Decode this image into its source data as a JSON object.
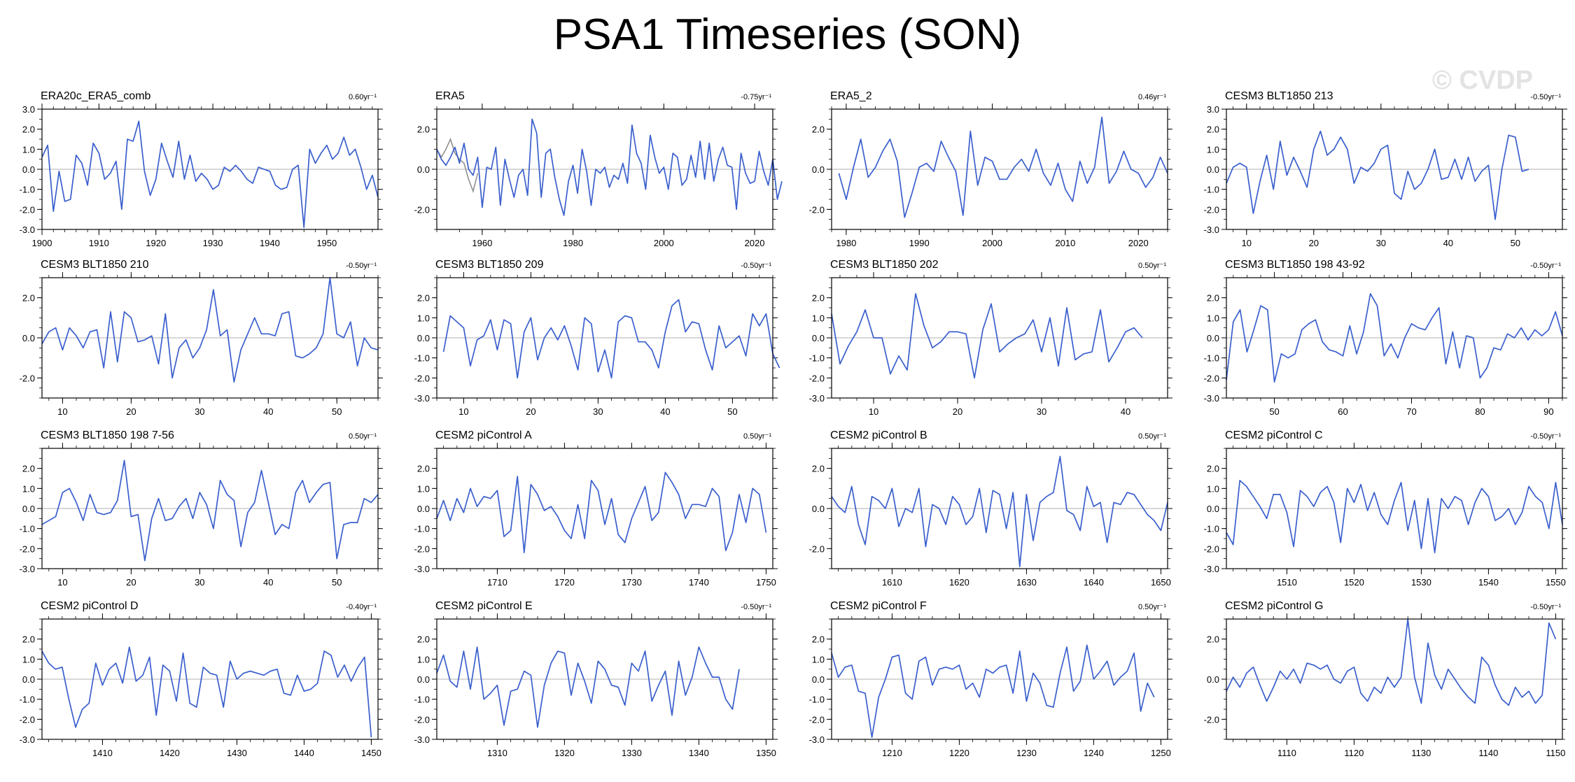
{
  "title": "PSA1 Timeseries (SON)",
  "watermark": "© CVDP",
  "colors": {
    "series": "#3a5fcd",
    "obs_extra": "#909090",
    "zero": "#b0b0b0",
    "frame": "#000000"
  },
  "chart_data": [
    {
      "type": "line",
      "title": "ERA20c_ERA5_comb",
      "trend": "0.60yr⁻¹",
      "xlim": [
        1900,
        1959
      ],
      "ylim": [
        -3.0,
        3.0
      ],
      "xticks": [
        1900,
        1910,
        1920,
        1930,
        1940,
        1950
      ],
      "yticks": [
        "3.0",
        "2.0",
        "1.0",
        "0.0",
        "-1.0",
        "-2.0",
        "-3.0"
      ],
      "x_start": 1900,
      "values": [
        0.6,
        1.2,
        -2.1,
        -0.1,
        -1.6,
        -1.5,
        0.7,
        0.3,
        -0.8,
        1.3,
        0.8,
        -0.5,
        -0.2,
        0.4,
        -2.0,
        1.5,
        1.4,
        2.4,
        -0.1,
        -1.3,
        -0.5,
        1.3,
        0.4,
        -0.4,
        1.4,
        -0.5,
        0.7,
        -0.6,
        -0.2,
        -0.5,
        -1.0,
        -0.8,
        0.1,
        -0.1,
        0.2,
        -0.1,
        -0.5,
        -0.7,
        0.1,
        0.0,
        -0.1,
        -0.8,
        -1.0,
        -0.9,
        0.0,
        0.2,
        -2.9,
        1.0,
        0.3,
        0.8,
        1.2,
        0.5,
        0.8,
        1.6,
        0.7,
        1.0,
        0.1,
        -1.0,
        -0.3,
        -1.4
      ]
    },
    {
      "type": "line",
      "title": "ERA5",
      "trend": "-0.75yr⁻¹",
      "xlim": [
        1950,
        2024
      ],
      "ylim": [
        -3.0,
        3.0
      ],
      "xticks": [
        1960,
        1980,
        2000,
        2020
      ],
      "yticks": [
        "2.0",
        "0.0",
        "-2.0"
      ],
      "x_start": 1950,
      "values": [
        1.0,
        0.5,
        0.2,
        0.6,
        1.1,
        0.3,
        1.3,
        0.0,
        -0.3,
        0.6,
        -1.9,
        0.1,
        0.0,
        1.1,
        -1.8,
        0.5,
        -0.5,
        -1.4,
        -0.3,
        0.0,
        -1.3,
        2.5,
        1.8,
        -1.4,
        0.8,
        1.0,
        -0.4,
        -1.5,
        -2.3,
        -0.6,
        0.2,
        -1.2,
        1.0,
        -0.1,
        -1.8,
        0.0,
        -0.2,
        0.1,
        -0.9,
        -0.3,
        -0.5,
        0.3,
        -0.7,
        2.2,
        0.8,
        0.3,
        -1.0,
        1.7,
        0.6,
        -0.2,
        0.1,
        -1.0,
        0.8,
        0.6,
        -0.8,
        -0.5,
        0.7,
        -0.4,
        1.4,
        -0.5,
        1.3,
        -0.6,
        0.5,
        1.1,
        0.2,
        0.1,
        -2.0,
        0.8,
        -0.2,
        -0.7,
        -0.6,
        0.9,
        -0.1,
        -0.8,
        0.5,
        -1.5,
        -0.6
      ],
      "extra_series": {
        "name": "obs-extra",
        "x_start": 1950,
        "values": [
          1.0,
          0.6,
          1.0,
          1.5,
          0.8,
          0.5,
          0.3,
          -0.5,
          -1.1,
          -0.2
        ]
      }
    },
    {
      "type": "line",
      "title": "ERA5_2",
      "trend": "0.46yr⁻¹",
      "xlim": [
        1978,
        2024
      ],
      "ylim": [
        -3.0,
        3.0
      ],
      "xticks": [
        1980,
        1990,
        2000,
        2010,
        2020
      ],
      "yticks": [
        "2.0",
        "0.0",
        "-2.0"
      ],
      "x_start": 1979,
      "values": [
        -0.2,
        -1.5,
        0.1,
        1.5,
        -0.4,
        0.1,
        0.9,
        1.5,
        0.4,
        -2.4,
        -1.2,
        0.1,
        0.3,
        -0.1,
        1.4,
        0.6,
        -0.1,
        -2.3,
        1.9,
        -0.8,
        0.6,
        0.4,
        -0.5,
        -0.5,
        0.1,
        0.5,
        -0.1,
        1.0,
        -0.2,
        -0.8,
        0.3,
        -1.0,
        -1.6,
        0.4,
        -0.7,
        0.1,
        2.6,
        -0.7,
        -0.1,
        0.9,
        0.0,
        -0.2,
        -0.9,
        -0.4,
        0.6,
        -0.2
      ]
    },
    {
      "type": "line",
      "title": "CESM3 BLT1850 213",
      "trend": "-0.50yr⁻¹",
      "xlim": [
        7,
        57
      ],
      "ylim": [
        -3.0,
        3.0
      ],
      "xticks": [
        10,
        20,
        30,
        40,
        50
      ],
      "yticks": [
        "3.0",
        "2.0",
        "1.0",
        "0.0",
        "-1.0",
        "-2.0",
        "-3.0"
      ],
      "x_start": 7,
      "values": [
        -0.7,
        0.1,
        0.3,
        0.1,
        -2.2,
        -0.6,
        0.7,
        -1.0,
        1.4,
        -0.3,
        0.6,
        -0.1,
        -0.9,
        1.0,
        1.9,
        0.7,
        1.0,
        1.6,
        1.0,
        -0.7,
        0.1,
        -0.1,
        0.3,
        1.0,
        1.2,
        -1.2,
        -1.5,
        -0.1,
        -1.0,
        -0.7,
        0.0,
        1.0,
        -0.5,
        -0.4,
        0.5,
        -0.5,
        0.6,
        -0.6,
        -0.1,
        0.2,
        -2.5,
        0.0,
        1.7,
        1.6,
        -0.1,
        0.0
      ]
    },
    {
      "type": "line",
      "title": "CESM3 BLT1850 210",
      "trend": "-0.50yr⁻¹",
      "xlim": [
        7,
        56
      ],
      "ylim": [
        -3.0,
        3.0
      ],
      "xticks": [
        10,
        20,
        30,
        40,
        50
      ],
      "yticks": [
        "2.0",
        "0.0",
        "-2.0"
      ],
      "x_start": 7,
      "values": [
        -0.3,
        0.3,
        0.5,
        -0.6,
        0.5,
        0.1,
        -0.5,
        0.3,
        0.4,
        -1.5,
        1.3,
        -1.2,
        1.3,
        1.0,
        -0.2,
        -0.1,
        0.1,
        -1.3,
        1.2,
        -2.0,
        -0.5,
        -0.1,
        -1.0,
        -0.5,
        0.4,
        2.4,
        0.1,
        0.4,
        -2.2,
        -0.6,
        0.2,
        1.0,
        0.2,
        0.2,
        0.1,
        1.2,
        1.3,
        -0.9,
        -1.0,
        -0.8,
        -0.5,
        0.2,
        3.0,
        0.2,
        0.0,
        0.8,
        -1.4,
        0.0,
        -0.5,
        -0.6
      ]
    },
    {
      "type": "line",
      "title": "CESM3 BLT1850 209",
      "trend": "-0.50yr⁻¹",
      "xlim": [
        6,
        56
      ],
      "ylim": [
        -3.0,
        3.0
      ],
      "xticks": [
        10,
        20,
        30,
        40,
        50
      ],
      "yticks": [
        "2.0",
        "1.0",
        "0.0",
        "-1.0",
        "-2.0",
        "-3.0"
      ],
      "x_start": 7,
      "values": [
        -0.7,
        1.1,
        0.8,
        0.5,
        -1.4,
        -0.1,
        0.1,
        0.9,
        -0.6,
        0.9,
        0.7,
        -2.0,
        0.3,
        1.0,
        -1.1,
        0.0,
        0.5,
        -0.1,
        0.6,
        -0.4,
        -1.6,
        1.0,
        0.7,
        -1.7,
        -0.6,
        -2.0,
        0.8,
        1.1,
        1.0,
        -0.2,
        -0.2,
        -0.6,
        -1.5,
        0.3,
        1.6,
        1.9,
        0.3,
        0.8,
        0.7,
        -0.6,
        -1.6,
        0.6,
        -0.5,
        -0.2,
        0.1,
        -0.9,
        1.2,
        0.6,
        1.2,
        -0.8,
        -1.5
      ]
    },
    {
      "type": "line",
      "title": "CESM3 BLT1850 202",
      "trend": "0.50yr⁻¹",
      "xlim": [
        5,
        45
      ],
      "ylim": [
        -3.0,
        3.0
      ],
      "xticks": [
        10,
        20,
        30,
        40
      ],
      "yticks": [
        "2.0",
        "1.0",
        "0.0",
        "-1.0",
        "-2.0",
        "-3.0"
      ],
      "x_start": 5,
      "values": [
        1.2,
        -1.3,
        -0.4,
        0.3,
        1.4,
        0.0,
        0.0,
        -1.8,
        -0.9,
        -1.6,
        2.2,
        0.6,
        -0.5,
        -0.2,
        0.3,
        0.3,
        0.2,
        -2.0,
        0.4,
        1.7,
        -0.7,
        -0.3,
        0.0,
        0.2,
        0.9,
        -0.7,
        1.0,
        -1.4,
        1.5,
        -1.1,
        -0.8,
        -0.7,
        1.4,
        -1.2,
        -0.5,
        0.3,
        0.5,
        0.0
      ]
    },
    {
      "type": "line",
      "title": "CESM3 BLT1850 198 43-92",
      "trend": "-0.50yr⁻¹",
      "xlim": [
        43,
        92
      ],
      "ylim": [
        -3.0,
        3.0
      ],
      "xticks": [
        50,
        60,
        70,
        80,
        90
      ],
      "yticks": [
        "2.0",
        "1.0",
        "0.0",
        "-1.0",
        "-2.0",
        "-3.0"
      ],
      "x_start": 43,
      "values": [
        -2.1,
        0.8,
        1.4,
        -0.7,
        0.4,
        1.6,
        1.4,
        -2.2,
        -0.8,
        -1.0,
        -0.8,
        0.4,
        0.7,
        0.9,
        -0.2,
        -0.6,
        -0.7,
        -0.9,
        0.6,
        -0.8,
        0.3,
        2.2,
        1.6,
        -0.9,
        -0.3,
        -1.0,
        0.0,
        0.7,
        0.5,
        0.4,
        1.0,
        1.5,
        -1.3,
        0.3,
        -1.5,
        0.1,
        0.0,
        -2.0,
        -1.5,
        -0.5,
        -0.6,
        0.2,
        0.0,
        0.5,
        -0.1,
        0.4,
        0.1,
        0.4,
        1.3,
        0.1
      ]
    },
    {
      "type": "line",
      "title": "CESM3 BLT1850 198 7-56",
      "trend": "0.50yr⁻¹",
      "xlim": [
        7,
        56
      ],
      "ylim": [
        -3.0,
        3.0
      ],
      "xticks": [
        10,
        20,
        30,
        40,
        50
      ],
      "yticks": [
        "2.0",
        "1.0",
        "0.0",
        "-1.0",
        "-2.0",
        "-3.0"
      ],
      "x_start": 7,
      "values": [
        -0.8,
        -0.6,
        -0.4,
        0.8,
        1.0,
        0.3,
        -0.6,
        0.7,
        -0.2,
        -0.3,
        -0.2,
        0.4,
        2.4,
        -0.4,
        -0.3,
        -2.6,
        -0.5,
        0.5,
        -0.6,
        -0.5,
        0.1,
        0.5,
        -0.5,
        0.8,
        0.2,
        -1.0,
        1.4,
        0.7,
        0.4,
        -1.9,
        -0.2,
        0.3,
        1.9,
        0.3,
        -1.3,
        -0.8,
        -1.0,
        0.8,
        1.4,
        0.3,
        0.8,
        1.2,
        1.3,
        -2.5,
        -0.8,
        -0.7,
        -0.7,
        0.5,
        0.3,
        0.7
      ]
    },
    {
      "type": "line",
      "title": "CESM2 piControl A",
      "trend": "0.50yr⁻¹",
      "xlim": [
        1701,
        1751
      ],
      "ylim": [
        -3.0,
        3.0
      ],
      "xticks": [
        1710,
        1720,
        1730,
        1740,
        1750
      ],
      "yticks": [
        "2.0",
        "1.0",
        "0.0",
        "-1.0",
        "-2.0",
        "-3.0"
      ],
      "x_start": 1701,
      "values": [
        -0.5,
        0.4,
        -0.6,
        0.5,
        -0.2,
        1.0,
        0.1,
        0.6,
        0.5,
        0.9,
        -1.4,
        -1.1,
        1.6,
        -2.2,
        1.2,
        0.7,
        -0.1,
        0.1,
        -0.4,
        -1.1,
        -1.5,
        0.2,
        -1.5,
        1.4,
        0.9,
        -0.8,
        0.5,
        -1.3,
        -1.7,
        -0.5,
        0.3,
        1.1,
        -0.6,
        -0.2,
        1.8,
        1.3,
        0.7,
        -0.5,
        0.2,
        0.2,
        0.1,
        1.0,
        0.6,
        -2.1,
        -1.2,
        0.7,
        -0.7,
        1.0,
        0.7,
        -1.2
      ]
    },
    {
      "type": "line",
      "title": "CESM2 piControl B",
      "trend": "0.50yr⁻¹",
      "xlim": [
        1601,
        1651
      ],
      "ylim": [
        -3.0,
        3.0
      ],
      "xticks": [
        1610,
        1620,
        1630,
        1640,
        1650
      ],
      "yticks": [
        "2.0",
        "0.0",
        "-2.0"
      ],
      "x_start": 1601,
      "values": [
        0.6,
        0.1,
        -0.2,
        1.1,
        -0.8,
        -1.8,
        0.6,
        0.4,
        0.0,
        1.0,
        -0.9,
        0.0,
        -0.2,
        1.0,
        -1.9,
        0.2,
        0.0,
        -0.8,
        0.6,
        0.2,
        -0.8,
        -0.4,
        1.0,
        -1.2,
        0.9,
        0.7,
        -1.0,
        0.8,
        -2.9,
        0.7,
        -1.6,
        0.3,
        0.6,
        0.8,
        2.6,
        -0.1,
        -0.3,
        -1.1,
        1.1,
        0.1,
        0.3,
        -1.7,
        0.3,
        0.2,
        0.8,
        0.7,
        0.2,
        -0.3,
        -0.6,
        -1.1,
        0.3
      ]
    },
    {
      "type": "line",
      "title": "CESM2 piControl C",
      "trend": "-0.50yr⁻¹",
      "xlim": [
        1501,
        1551
      ],
      "ylim": [
        -3.0,
        3.0
      ],
      "xticks": [
        1510,
        1520,
        1530,
        1540,
        1550
      ],
      "yticks": [
        "2.0",
        "1.0",
        "0.0",
        "-1.0",
        "-2.0",
        "-3.0"
      ],
      "x_start": 1501,
      "values": [
        -1.2,
        -1.8,
        1.4,
        1.1,
        0.6,
        0.1,
        -0.5,
        0.7,
        0.7,
        -0.2,
        -1.9,
        0.9,
        0.6,
        0.1,
        0.8,
        1.1,
        0.3,
        -1.7,
        1.0,
        0.3,
        1.2,
        -0.1,
        0.8,
        -0.3,
        -0.8,
        0.4,
        1.3,
        -1.1,
        0.4,
        -2.0,
        0.5,
        -2.2,
        0.5,
        0.0,
        0.6,
        0.4,
        -0.8,
        0.3,
        1.0,
        0.6,
        -0.6,
        -0.4,
        0.0,
        -0.8,
        -0.2,
        1.1,
        0.6,
        0.3,
        -1.0,
        1.3,
        -0.8
      ]
    },
    {
      "type": "line",
      "title": "CESM2 piControl D",
      "trend": "-0.40yr⁻¹",
      "xlim": [
        1401,
        1451
      ],
      "ylim": [
        -3.0,
        3.0
      ],
      "xticks": [
        1410,
        1420,
        1430,
        1440,
        1450
      ],
      "yticks": [
        "2.0",
        "1.0",
        "0.0",
        "-1.0",
        "-2.0",
        "-3.0"
      ],
      "x_start": 1401,
      "values": [
        1.4,
        0.8,
        0.5,
        0.6,
        -1.0,
        -2.4,
        -1.5,
        -1.2,
        0.8,
        -0.3,
        0.5,
        0.8,
        -0.2,
        1.6,
        -0.1,
        0.2,
        1.1,
        -1.8,
        0.7,
        0.4,
        -1.1,
        1.3,
        -1.2,
        -1.4,
        0.6,
        0.3,
        0.2,
        -1.4,
        0.9,
        0.0,
        0.3,
        0.4,
        0.3,
        0.2,
        0.4,
        0.5,
        -0.7,
        -0.8,
        0.2,
        -0.6,
        -0.5,
        -0.2,
        1.4,
        1.2,
        0.1,
        0.7,
        -0.1,
        0.6,
        1.1,
        -2.9
      ]
    },
    {
      "type": "line",
      "title": "CESM2 piControl E",
      "trend": "-0.50yr⁻¹",
      "xlim": [
        1301,
        1351
      ],
      "ylim": [
        -3.0,
        3.0
      ],
      "xticks": [
        1310,
        1320,
        1330,
        1340,
        1350
      ],
      "yticks": [
        "2.0",
        "1.0",
        "0.0",
        "-1.0",
        "-2.0",
        "-3.0"
      ],
      "x_start": 1301,
      "values": [
        0.3,
        1.2,
        -0.1,
        -0.4,
        1.4,
        -0.5,
        1.6,
        -1.0,
        -0.7,
        -0.3,
        -2.3,
        -0.6,
        -0.5,
        0.4,
        0.2,
        -2.4,
        -0.3,
        0.8,
        1.4,
        1.3,
        -0.8,
        0.8,
        -0.1,
        -1.2,
        0.9,
        0.5,
        -0.3,
        -0.4,
        -1.3,
        0.8,
        0.4,
        1.4,
        -1.1,
        -0.3,
        0.4,
        -1.8,
        0.9,
        -0.8,
        0.1,
        1.6,
        0.8,
        0.1,
        0.1,
        -1.0,
        -1.5,
        0.5
      ]
    },
    {
      "type": "line",
      "title": "CESM2 piControl F",
      "trend": "0.50yr⁻¹",
      "xlim": [
        1201,
        1251
      ],
      "ylim": [
        -3.0,
        3.0
      ],
      "xticks": [
        1210,
        1220,
        1230,
        1240,
        1250
      ],
      "yticks": [
        "2.0",
        "1.0",
        "0.0",
        "-1.0",
        "-2.0",
        "-3.0"
      ],
      "x_start": 1201,
      "values": [
        1.3,
        0.1,
        0.6,
        0.7,
        -0.6,
        -0.7,
        -2.9,
        -0.9,
        0.0,
        1.1,
        1.2,
        -0.7,
        -1.0,
        0.9,
        1.1,
        -0.3,
        0.5,
        0.6,
        0.5,
        0.7,
        -0.5,
        -0.2,
        -0.9,
        0.5,
        0.3,
        0.6,
        0.7,
        -0.7,
        1.4,
        -1.1,
        0.3,
        -0.2,
        -1.3,
        -1.4,
        0.3,
        1.6,
        -0.6,
        -0.1,
        1.7,
        0.0,
        0.4,
        0.9,
        -0.3,
        0.1,
        0.4,
        1.3,
        -1.6,
        -0.2,
        -0.9
      ]
    },
    {
      "type": "line",
      "title": "CESM2 piControl G",
      "trend": "-0.50yr⁻¹",
      "xlim": [
        1101,
        1151
      ],
      "ylim": [
        -3.0,
        3.0
      ],
      "xticks": [
        1110,
        1120,
        1130,
        1140,
        1150
      ],
      "yticks": [
        "2.0",
        "0.0",
        "-2.0"
      ],
      "x_start": 1101,
      "values": [
        -0.6,
        0.1,
        -0.4,
        0.3,
        0.6,
        -0.3,
        -1.1,
        -0.4,
        0.4,
        0.0,
        0.5,
        -0.2,
        0.8,
        0.7,
        0.5,
        0.7,
        0.0,
        -0.2,
        0.4,
        0.6,
        -0.7,
        -1.1,
        -0.4,
        -0.7,
        0.1,
        -0.4,
        0.1,
        3.0,
        0.1,
        -1.2,
        1.8,
        0.2,
        -0.5,
        0.5,
        0.0,
        -0.5,
        -0.9,
        -1.2,
        1.1,
        0.7,
        -0.3,
        -1.0,
        -1.3,
        -0.4,
        -0.9,
        -0.6,
        -1.2,
        -0.8,
        2.8,
        2.0
      ]
    }
  ]
}
